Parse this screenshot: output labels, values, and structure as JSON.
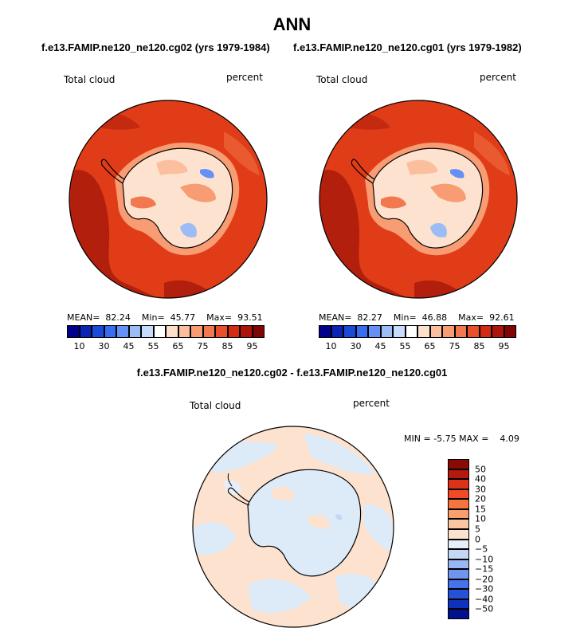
{
  "page_title": "ANN",
  "left_panel": {
    "case_title": "f.e13.FAMIP.ne120_ne120.cg02 (yrs 1979-1984)",
    "variable_label": "Total cloud",
    "units_label": "percent",
    "stats": {
      "mean_label": "MEAN=",
      "mean": "82.24",
      "min_label": "Min=",
      "min": "45.77",
      "max_label": "Max=",
      "max": "93.51"
    }
  },
  "right_panel": {
    "case_title": "f.e13.FAMIP.ne120_ne120.cg01 (yrs 1979-1982)",
    "variable_label": "Total cloud",
    "units_label": "percent",
    "stats": {
      "mean_label": "MEAN=",
      "mean": "82.27",
      "min_label": "Min=",
      "min": "46.88",
      "max_label": "Max=",
      "max": "92.61"
    }
  },
  "colorbar_top": {
    "colors": [
      "#00008c",
      "#0b24b5",
      "#1a4ad8",
      "#3a6cf0",
      "#6591f6",
      "#9cbcf8",
      "#c8dbfa",
      "#ffffff",
      "#fde0cc",
      "#fcbf9e",
      "#f89c74",
      "#f2784f",
      "#e8502c",
      "#d42c14",
      "#ae150a",
      "#820505"
    ],
    "tick_labels": [
      "10",
      "30",
      "45",
      "55",
      "65",
      "75",
      "85",
      "95"
    ]
  },
  "diff_panel": {
    "title": "f.e13.FAMIP.ne120_ne120.cg02 - f.e13.FAMIP.ne120_ne120.cg01",
    "variable_label": "Total cloud",
    "units_label": "percent",
    "minmax": {
      "min_label": "MIN =",
      "min": "-5.75",
      "max_label": "MAX =",
      "max": "4.09"
    }
  },
  "colorbar_diff": {
    "colors": [
      "#8a0a05",
      "#b41b0e",
      "#dc3318",
      "#f24a24",
      "#f7743e",
      "#f99f6c",
      "#fbc5a1",
      "#fde3cf",
      "#e7eef8",
      "#c4d8f6",
      "#99b8f3",
      "#6f96ef",
      "#4672ea",
      "#2652d9",
      "#0f32bd",
      "#02128c"
    ],
    "tick_labels": [
      "50",
      "40",
      "30",
      "20",
      "15",
      "10",
      "5",
      "0",
      "−5",
      "−10",
      "−15",
      "−20",
      "−30",
      "−40",
      "−50"
    ]
  },
  "map_colors": {
    "ocean_fill_top": "#e13c18",
    "ocean_dark": "#b2200d",
    "ice_light": "#fde3cf",
    "ice_pale": "#fbc5a1",
    "ice_blue": "#9cbcf8",
    "diff_base": "#ddeaf8",
    "diff_warm": "#fde3cf"
  }
}
